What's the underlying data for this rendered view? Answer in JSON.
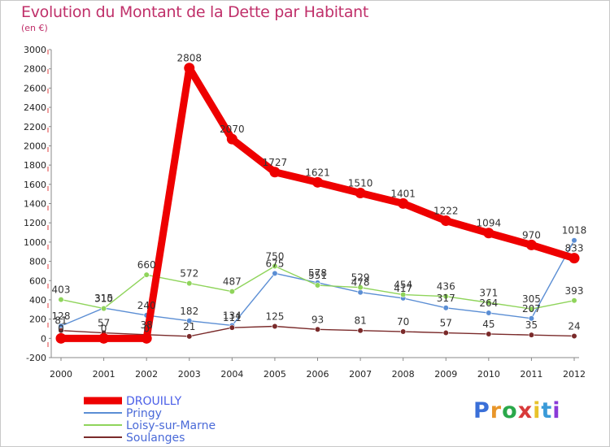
{
  "title": "Evolution du Montant de la Dette par Habitant",
  "subtitle": "(en €)",
  "brand": {
    "letters": [
      "P",
      "r",
      "o",
      "x",
      "i",
      "t",
      "i"
    ],
    "colors": [
      "#3a6fd8",
      "#e8962a",
      "#2aa84a",
      "#d83a3a",
      "#e8c22a",
      "#3a9ad8",
      "#8a3ad8"
    ]
  },
  "chart_data": {
    "type": "line",
    "title": "Evolution du Montant de la Dette par Habitant",
    "ylabel": "(en €)",
    "ylim": [
      -200,
      3000
    ],
    "ystep": 200,
    "x": [
      "2000",
      "2001",
      "2002",
      "2003",
      "2004",
      "2005",
      "2006",
      "2007",
      "2008",
      "2009",
      "2010",
      "2011",
      "2012"
    ],
    "series": [
      {
        "name": "DROUILLY",
        "color": "#ee0000",
        "emphasis": true,
        "values": [
          0,
          0,
          0,
          2808,
          2070,
          1727,
          1621,
          1510,
          1401,
          1222,
          1094,
          970,
          833
        ],
        "labels": [
          "0",
          "0",
          "0",
          "2808",
          "2070",
          "1727",
          "1621",
          "1510",
          "1401",
          "1222",
          "1094",
          "970",
          "833"
        ]
      },
      {
        "name": "Pringy",
        "color": "#5b8ed4",
        "values": [
          128,
          315,
          240,
          182,
          134,
          675,
          578,
          478,
          417,
          317,
          264,
          207,
          1018
        ],
        "labels": [
          "128",
          "315",
          "240",
          "182",
          "134",
          "675",
          "578",
          "478",
          "417",
          "317",
          "264",
          "207",
          "1018"
        ]
      },
      {
        "name": "Loisy-sur-Marne",
        "color": "#8fd45b",
        "values": [
          403,
          310,
          660,
          572,
          487,
          750,
          551,
          529,
          454,
          436,
          371,
          305,
          393
        ],
        "labels": [
          "403",
          "310",
          "660",
          "572",
          "487",
          "750",
          "551",
          "529",
          "454",
          "436",
          "371",
          "305",
          "393"
        ]
      },
      {
        "name": "Soulanges",
        "color": "#7a2a2a",
        "values": [
          81,
          57,
          38,
          21,
          111,
          125,
          93,
          81,
          70,
          57,
          45,
          35,
          24
        ],
        "labels": [
          "81",
          "57",
          "38",
          "21",
          "111",
          "125",
          "93",
          "81",
          "70",
          "57",
          "45",
          "35",
          "24"
        ]
      }
    ],
    "grid": false,
    "legend": "bottom-left"
  }
}
